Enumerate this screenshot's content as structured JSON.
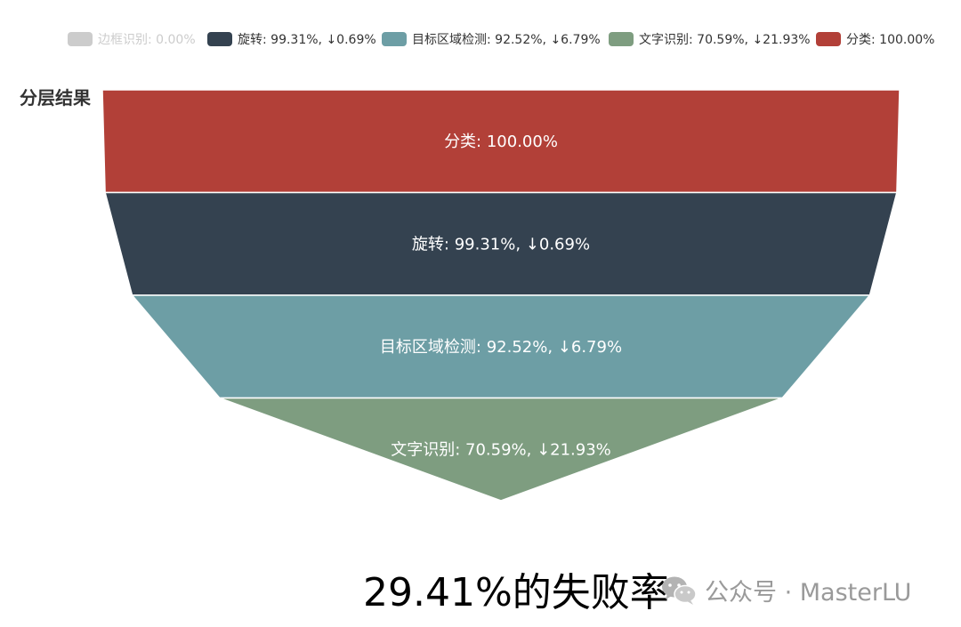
{
  "chart_data": {
    "type": "funnel",
    "title": "分层结果",
    "legend": [
      {
        "label": "边框识别: 0.00%",
        "color": "#cccccc",
        "visible": false
      },
      {
        "label": "旋转: 99.31%, ↓0.69%",
        "color": "#344250",
        "visible": true
      },
      {
        "label": "目标区域检测: 92.52%, ↓6.79%",
        "color": "#6d9ea5",
        "visible": true
      },
      {
        "label": "文字识别: 70.59%, ↓21.93%",
        "color": "#7e9d80",
        "visible": true
      },
      {
        "label": "分类: 100.00%",
        "color": "#b24038",
        "visible": true
      }
    ],
    "stages": [
      {
        "name": "分类",
        "value": 100.0,
        "label": "分类: 100.00%",
        "color": "#b24038"
      },
      {
        "name": "旋转",
        "value": 99.31,
        "drop": 0.69,
        "label": "旋转: 99.31%, ↓0.69%",
        "color": "#344250"
      },
      {
        "name": "目标区域检测",
        "value": 92.52,
        "drop": 6.79,
        "label": "目标区域检测: 92.52%, ↓6.79%",
        "color": "#6d9ea5"
      },
      {
        "name": "文字识别",
        "value": 70.59,
        "drop": 21.93,
        "label": "文字识别: 70.59%, ↓21.93%",
        "color": "#7e9d80"
      }
    ]
  },
  "caption": "29.41%的失败率",
  "watermark": {
    "icon": "wechat-icon",
    "text": "公众号 · MasterLU"
  }
}
